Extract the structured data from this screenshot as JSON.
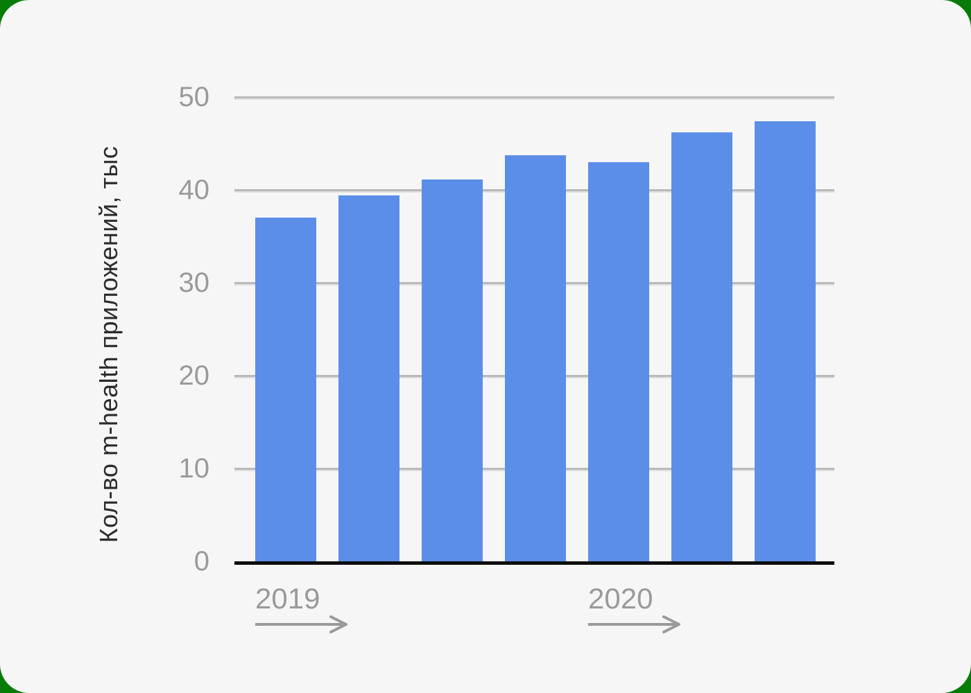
{
  "chart_data": {
    "type": "bar",
    "title": "",
    "ylabel": "Кол-во m-health приложений, тыс",
    "xlabel": "",
    "ylim": [
      0,
      50
    ],
    "yticks": [
      0,
      10,
      20,
      30,
      40,
      50
    ],
    "values": [
      37,
      39.4,
      41.1,
      43.7,
      43,
      46.2,
      47.4
    ],
    "bar_count": 7,
    "x_axis_labels": [
      {
        "label": "2019",
        "bar_index": 0,
        "arrow": "right"
      },
      {
        "label": "2020",
        "bar_index": 4,
        "arrow": "right"
      }
    ],
    "grid": true,
    "legend": false,
    "legend_position": "none"
  },
  "colors": {
    "page_background": "#067c06",
    "card_background": "#f6f6f6",
    "bar": "#5b8ee8",
    "gridline": "#b9b9b9",
    "axis_line": "#0d0d0d",
    "tick_label": "#9a9a9a",
    "x_label": "#9a9a9a",
    "arrow": "#9a9a9a",
    "y_title": "#2b2b2b"
  }
}
